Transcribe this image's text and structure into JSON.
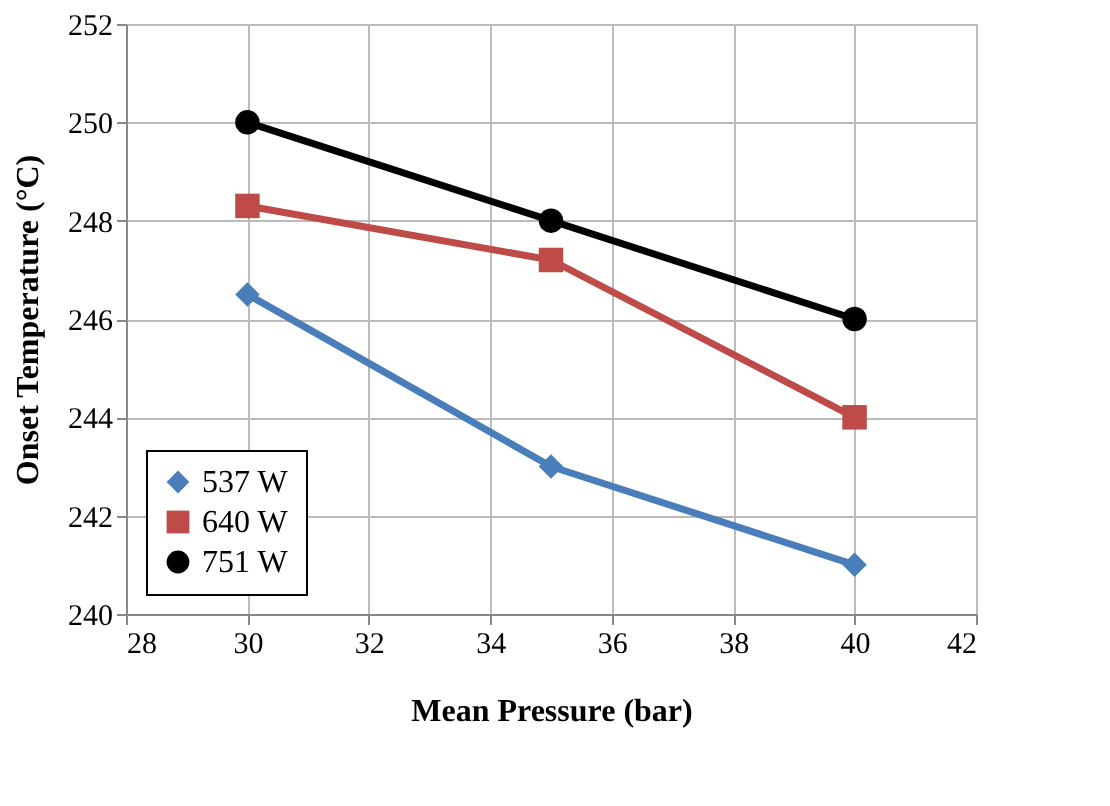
{
  "chart_data": {
    "type": "line",
    "xlabel": "Mean Pressure (bar)",
    "ylabel": "Onset Temperature (°C)",
    "x": [
      30,
      35,
      40
    ],
    "series": [
      {
        "name": "537 W",
        "color": "#4a7ebb",
        "marker": "diamond",
        "values": [
          246.5,
          243,
          241
        ]
      },
      {
        "name": "640 W",
        "color": "#be4b48",
        "marker": "square",
        "values": [
          248.3,
          247.2,
          244
        ]
      },
      {
        "name": "751 W",
        "color": "#000000",
        "marker": "circle",
        "values": [
          250,
          248,
          246
        ]
      }
    ],
    "xlim": [
      28,
      42
    ],
    "xticks": [
      28,
      30,
      32,
      34,
      36,
      38,
      40,
      42
    ],
    "ylim": [
      240,
      252
    ],
    "yticks": [
      240,
      242,
      244,
      246,
      248,
      250,
      252
    ],
    "grid": true,
    "legend": "bottom left",
    "line_style": "solid"
  }
}
